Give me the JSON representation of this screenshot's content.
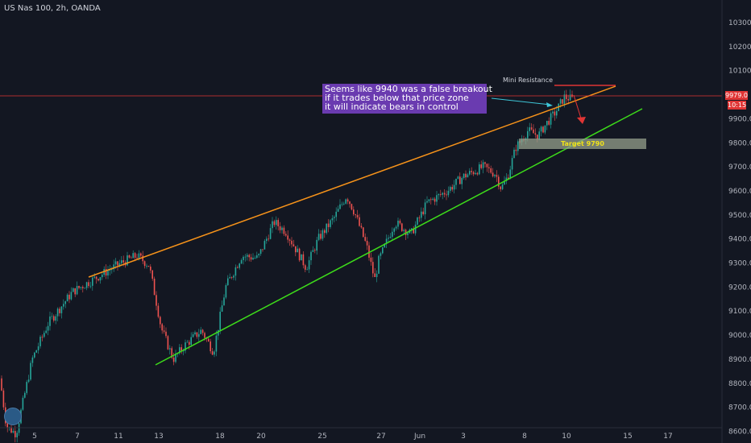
{
  "symbol_title": "US Nas 100, 2h, OANDA",
  "annotations": {
    "note_lines": [
      "Seems like 9940 was a false breakout",
      "if it trades below that price zone",
      "it will indicate bears in control"
    ],
    "mini_resistance": "Mini Resistance",
    "target": "Target  9790"
  },
  "price_tag": "9979.0",
  "time_tag": "10:15",
  "colors": {
    "up": "#26a69a",
    "down": "#ef5350",
    "wedge_upper": "#f7931a",
    "wedge_lower": "#3ddc1a",
    "resistance": "#e03535",
    "note_bg": "#6a3bb0"
  },
  "icons": {
    "logo": "tradingview-logo-icon",
    "arrow": "arrow-icon"
  },
  "chart_data": {
    "type": "candlestick",
    "title": "",
    "ylabel": "",
    "xlabel": "",
    "ylim": [
      8590,
      10380
    ],
    "y_ticks": [
      "10300.0",
      "10200.0",
      "10100.0",
      "9900.0",
      "9800.0",
      "9700.0",
      "9600.0",
      "9500.0",
      "9400.0",
      "9300.0",
      "9200.0",
      "9100.0",
      "9000.0",
      "8900.0",
      "8800.0",
      "8700.0",
      "8600.0"
    ],
    "x_ticks": [
      "5",
      "7",
      "11",
      "13",
      "18",
      "20",
      "25",
      "27",
      "Jun",
      "3",
      "8",
      "10",
      "15",
      "17"
    ],
    "grid": false,
    "levels": {
      "mini_resistance": 10020,
      "target": 9790
    },
    "price_path": [
      [
        0,
        8820
      ],
      [
        8,
        8620
      ],
      [
        20,
        8590
      ],
      [
        40,
        8900
      ],
      [
        60,
        9050
      ],
      [
        90,
        9180
      ],
      [
        110,
        9220
      ],
      [
        130,
        9260
      ],
      [
        150,
        9300
      ],
      [
        170,
        9330
      ],
      [
        185,
        9290
      ],
      [
        195,
        9120
      ],
      [
        200,
        9030
      ],
      [
        215,
        8900
      ],
      [
        230,
        8960
      ],
      [
        250,
        9020
      ],
      [
        265,
        8930
      ],
      [
        280,
        9200
      ],
      [
        300,
        9330
      ],
      [
        320,
        9320
      ],
      [
        340,
        9470
      ],
      [
        355,
        9430
      ],
      [
        380,
        9280
      ],
      [
        395,
        9400
      ],
      [
        415,
        9490
      ],
      [
        430,
        9580
      ],
      [
        440,
        9510
      ],
      [
        455,
        9370
      ],
      [
        465,
        9230
      ],
      [
        470,
        9310
      ],
      [
        490,
        9470
      ],
      [
        510,
        9420
      ],
      [
        530,
        9550
      ],
      [
        555,
        9600
      ],
      [
        575,
        9660
      ],
      [
        600,
        9700
      ],
      [
        615,
        9670
      ],
      [
        622,
        9610
      ],
      [
        630,
        9660
      ],
      [
        640,
        9780
      ],
      [
        655,
        9850
      ],
      [
        668,
        9830
      ],
      [
        678,
        9880
      ],
      [
        690,
        9930
      ],
      [
        700,
        9990
      ],
      [
        712,
        9980
      ]
    ]
  }
}
